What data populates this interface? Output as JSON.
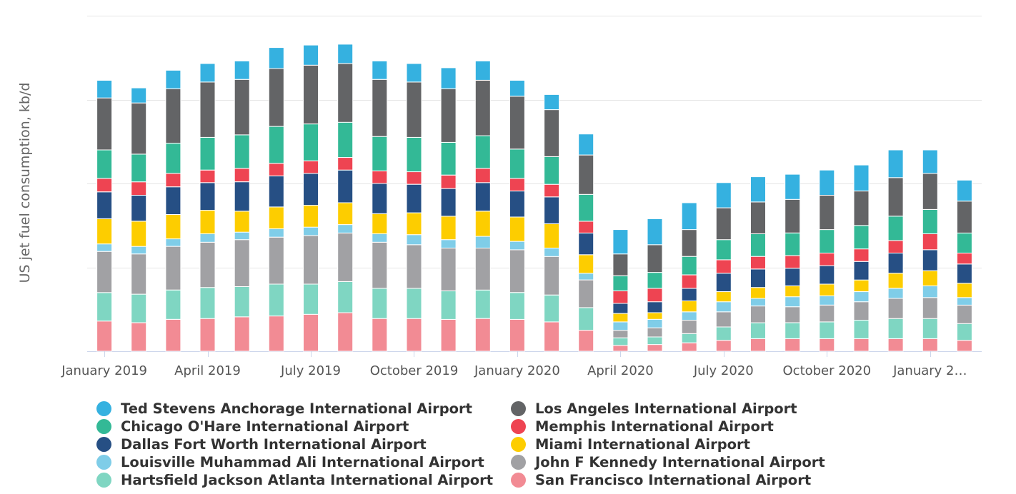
{
  "chart_data": {
    "type": "bar",
    "stacked": true,
    "title": "",
    "xlabel": "",
    "ylabel": "US jet fuel consumption, kb/d",
    "ylim": [
      0,
      200
    ],
    "y_gridlines": [
      0,
      50,
      100,
      150,
      200
    ],
    "y_tick_labels_shown": false,
    "legend_position": "bottom",
    "categories": [
      "Jan 2019",
      "Feb 2019",
      "Mar 2019",
      "Apr 2019",
      "May 2019",
      "Jun 2019",
      "Jul 2019",
      "Aug 2019",
      "Sep 2019",
      "Oct 2019",
      "Nov 2019",
      "Dec 2019",
      "Jan 2020",
      "Feb 2020",
      "Mar 2020",
      "Apr 2020",
      "May 2020",
      "Jun 2020",
      "Jul 2020",
      "Aug 2020",
      "Sep 2020",
      "Oct 2020",
      "Nov 2020",
      "Dec 2020",
      "Jan 2021",
      "Feb 2021"
    ],
    "x_tick_labels": [
      {
        "index": 0,
        "label": "January 2019"
      },
      {
        "index": 3,
        "label": "April 2019"
      },
      {
        "index": 6,
        "label": "July 2019"
      },
      {
        "index": 9,
        "label": "October 2019"
      },
      {
        "index": 12,
        "label": "January 2020"
      },
      {
        "index": 15,
        "label": "April 2020"
      },
      {
        "index": 18,
        "label": "July 2020"
      },
      {
        "index": 21,
        "label": "October 2020"
      },
      {
        "index": 24,
        "label": "January 2…"
      }
    ],
    "series": [
      {
        "name": "San Francisco International Airport",
        "color": "#f28b94",
        "values": [
          18,
          17,
          19,
          19.5,
          20.5,
          21,
          22,
          23,
          19.5,
          19.5,
          19,
          19.5,
          19,
          17.5,
          12.5,
          3.5,
          4,
          5,
          6.5,
          7.5,
          7.5,
          7.5,
          7.5,
          7.5,
          7.5,
          6.5
        ]
      },
      {
        "name": "Hartsfield Jackson Atlanta International Airport",
        "color": "#7fd6c2",
        "values": [
          17,
          17,
          17.5,
          18.5,
          18,
          19,
          18,
          18.5,
          18,
          18,
          17,
          17,
          16,
          16,
          13.5,
          4.5,
          4.5,
          5.5,
          8,
          9.5,
          9.5,
          10,
          11,
          12,
          12,
          10
        ]
      },
      {
        "name": "John F Kennedy International Airport",
        "color": "#a1a1a4",
        "values": [
          24.5,
          24,
          26,
          27,
          28,
          28,
          29,
          29,
          27.5,
          26,
          25.5,
          25,
          25.5,
          23,
          16.5,
          4.5,
          5.5,
          8,
          9,
          10,
          9.5,
          10,
          11,
          12,
          12.5,
          11
        ]
      },
      {
        "name": "Louisville Muhammad Ali International Airport",
        "color": "#7fcde8",
        "values": [
          4.5,
          4.5,
          4.5,
          5,
          4.5,
          5,
          5,
          5,
          5,
          6,
          5,
          7,
          5,
          5,
          4,
          5,
          5,
          5,
          6,
          4.5,
          6,
          5.5,
          6,
          6,
          7,
          4.5
        ]
      },
      {
        "name": "Miami International Airport",
        "color": "#fdcd00",
        "values": [
          15,
          15,
          14.5,
          14,
          12.5,
          13,
          13,
          13,
          12,
          13,
          14,
          15,
          14.5,
          14.5,
          11,
          5,
          4,
          6.5,
          6,
          6.5,
          6.5,
          7,
          7,
          9,
          9,
          8.5
        ]
      },
      {
        "name": "Dallas Fort Worth International Airport",
        "color": "#264f84",
        "values": [
          16,
          15.5,
          16.5,
          16.5,
          17.5,
          18.5,
          19,
          19.5,
          18,
          17,
          16.5,
          17,
          15.5,
          16,
          13,
          6,
          6.5,
          7.5,
          11,
          11,
          10.5,
          11,
          11,
          12,
          12.5,
          11.5
        ]
      },
      {
        "name": "Memphis International Airport",
        "color": "#ee4452",
        "values": [
          8,
          8,
          8,
          7.5,
          8,
          7.5,
          7.5,
          7.5,
          7.5,
          7.5,
          8,
          8.5,
          7.5,
          7.5,
          7,
          7.5,
          8,
          8,
          8,
          7.5,
          7.5,
          7.5,
          7.5,
          7.5,
          9.5,
          6.5
        ]
      },
      {
        "name": "Chicago O'Hare International Airport",
        "color": "#33b996",
        "values": [
          17,
          16.5,
          18,
          19.5,
          20,
          22,
          22,
          21,
          20.5,
          20.5,
          19.5,
          19.5,
          17.5,
          16.5,
          16,
          9,
          9.5,
          11,
          12,
          13.5,
          13.5,
          14,
          14,
          14.5,
          14.5,
          12
        ]
      },
      {
        "name": "Los Angeles International Airport",
        "color": "#636466",
        "values": [
          31,
          30.5,
          32.5,
          33,
          33,
          34.5,
          35,
          35,
          34,
          33,
          32,
          33,
          31.5,
          28,
          23.5,
          13,
          16.5,
          16,
          19,
          19,
          20,
          20.5,
          20.5,
          23,
          21.5,
          19
        ]
      },
      {
        "name": "Ted Stevens Anchorage International Airport",
        "color": "#35b1e0",
        "values": [
          10.5,
          9,
          11,
          11,
          11,
          12.5,
          12,
          11.5,
          11,
          11,
          12.5,
          11.5,
          9.5,
          9,
          12.5,
          14.5,
          15.5,
          16,
          15,
          15,
          15,
          15,
          15.5,
          16.5,
          14,
          12.5
        ]
      }
    ]
  },
  "legend": {
    "items": [
      {
        "label": "Ted Stevens Anchorage International Airport",
        "color": "#35b1e0"
      },
      {
        "label": "Los Angeles International Airport",
        "color": "#636466"
      },
      {
        "label": "Chicago O'Hare International Airport",
        "color": "#33b996"
      },
      {
        "label": "Memphis International Airport",
        "color": "#ee4452"
      },
      {
        "label": "Dallas Fort Worth International Airport",
        "color": "#264f84"
      },
      {
        "label": "Miami International Airport",
        "color": "#fdcd00"
      },
      {
        "label": "Louisville Muhammad Ali International Airport",
        "color": "#7fcde8"
      },
      {
        "label": "John F Kennedy International Airport",
        "color": "#a1a1a4"
      },
      {
        "label": "Hartsfield Jackson Atlanta International Airport",
        "color": "#7fd6c2"
      },
      {
        "label": "San Francisco International Airport",
        "color": "#f28b94"
      }
    ]
  }
}
